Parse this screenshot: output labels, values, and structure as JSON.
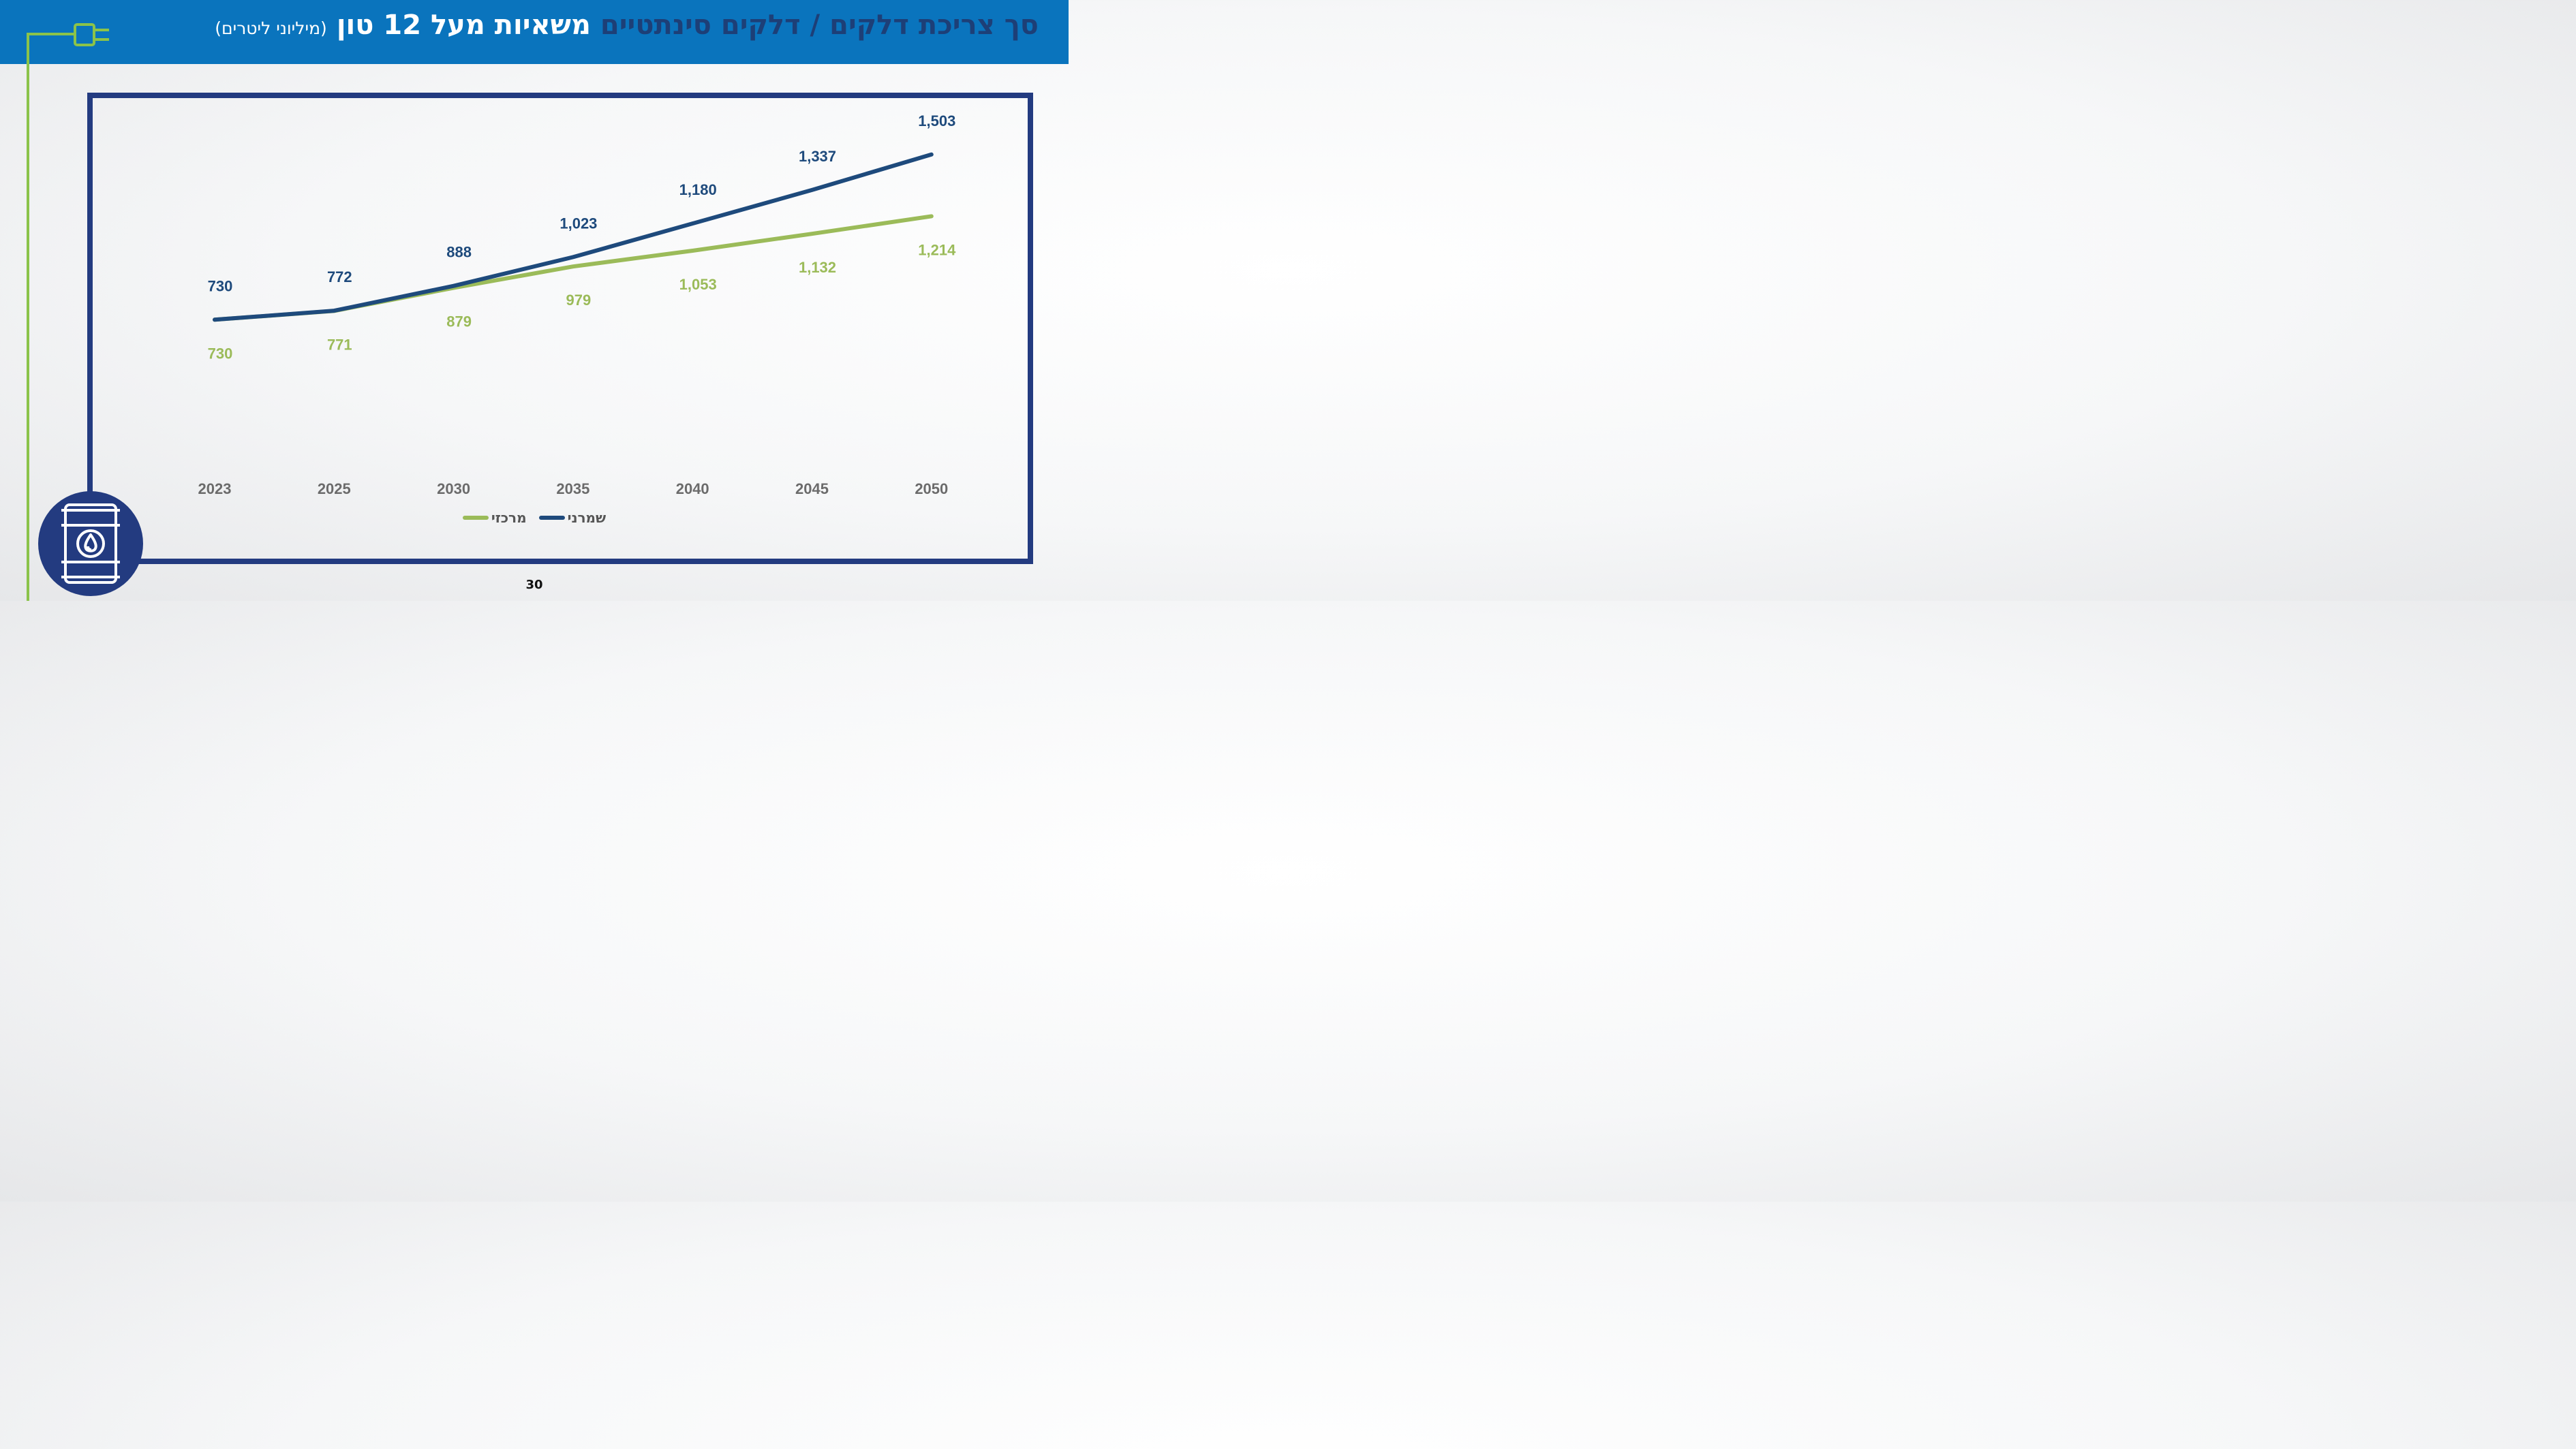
{
  "header": {
    "title_part1": "סך צריכת דלקים / דלקים סינתטיים",
    "title_part2": "משאיות מעל 12 טון",
    "title_unit": "(מיליוני ליטרים)"
  },
  "page_number": "30",
  "colors": {
    "header_bg": "#0a74bd",
    "frame": "#233b80",
    "series_conservative": "#1e4a7c",
    "series_central": "#9bbb59",
    "accent_green": "#8bc34a"
  },
  "icons": [
    "plug-icon",
    "oil-barrel-icon"
  ],
  "chart_data": {
    "type": "line",
    "x": [
      "2023",
      "2025",
      "2030",
      "2035",
      "2040",
      "2045",
      "2050"
    ],
    "series": [
      {
        "name": "שמרני",
        "values": [
          730,
          772,
          888,
          1023,
          1180,
          1337,
          1503
        ],
        "labels": [
          "730",
          "772",
          "888",
          "1,023",
          "1,180",
          "1,337",
          "1,503"
        ],
        "color": "#1e4a7c"
      },
      {
        "name": "מרכזי",
        "values": [
          730,
          771,
          879,
          979,
          1053,
          1132,
          1214
        ],
        "labels": [
          "730",
          "771",
          "879",
          "979",
          "1,053",
          "1,132",
          "1,214"
        ],
        "color": "#9bbb59"
      }
    ],
    "legend_position": "bottom",
    "grid": false
  }
}
